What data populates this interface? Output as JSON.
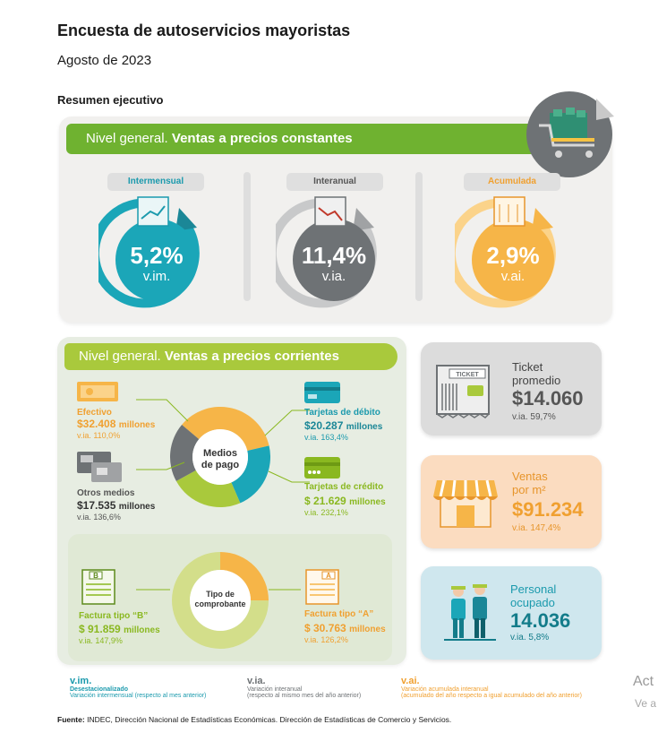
{
  "header": {
    "title": "Encuesta de autoservicios mayoristas",
    "date": "Agosto de 2023",
    "section": "Resumen ejecutivo"
  },
  "constantes": {
    "banner_prefix": "Nivel general.",
    "banner_main": "Ventas a precios constantes",
    "indicators": [
      {
        "label": "Intermensual",
        "value": "5,2%",
        "unit": "v.im.",
        "color": "#1ba6b8"
      },
      {
        "label": "Interanual",
        "value": "11,4%",
        "unit": "v.ia.",
        "color": "#6e7275"
      },
      {
        "label": "Acumulada",
        "value": "2,9%",
        "unit": "v.ai.",
        "color": "#f6b548"
      }
    ]
  },
  "corrientes": {
    "banner_prefix": "Nivel general.",
    "banner_main": "Ventas a precios corrientes",
    "medios_center": [
      "Medios",
      "de pago"
    ],
    "comprobante_center": [
      "Tipo de",
      "comprobante"
    ],
    "items": {
      "efectivo": {
        "label": "Efectivo",
        "amount": "$32.408",
        "unit": "millones",
        "var": "v.ia. 110,0%"
      },
      "otros": {
        "label": "Otros medios",
        "amount": "$17.535",
        "unit": "millones",
        "var": "v.ia. 136,6%"
      },
      "debito": {
        "label": "Tarjetas de débito",
        "amount": "$20.287",
        "unit": "millones",
        "var": "v.ia. 163,4%"
      },
      "credito": {
        "label": "Tarjetas de crédito",
        "amount": "$ 21.629",
        "unit": "millones",
        "var": "v.ia. 232,1%"
      },
      "factura_b": {
        "label": "Factura tipo “B”",
        "amount": "$ 91.859",
        "unit": "millones",
        "var": "v.ia. 147,9%"
      },
      "factura_a": {
        "label": "Factura tipo “A”",
        "amount": "$ 30.763",
        "unit": "millones",
        "var": "v.ia. 126,2%"
      }
    },
    "ticket_word": "TICKET",
    "letter_b": "B",
    "letter_a": "A"
  },
  "cards": {
    "ticket": {
      "label1": "Ticket",
      "label2": "promedio",
      "value": "$14.060",
      "var": "v.ia. 59,7%"
    },
    "ventas_m2": {
      "label1": "Ventas",
      "label2": "por m²",
      "value": "$91.234",
      "var": "v.ia. 147,4%"
    },
    "personal": {
      "label1": "Personal",
      "label2": "ocupado",
      "value": "14.036",
      "var": "v.ia. 5,8%"
    }
  },
  "glossary": [
    {
      "abbr": "v.im.",
      "line1": "Desestacionalizado",
      "line2": "Variación intermensual (respecto al mes anterior)",
      "color": "#1b9aad"
    },
    {
      "abbr": "v.ia.",
      "line1": "Variación interanual",
      "line2": "(respecto al mismo mes del año anterior)",
      "color": "#6e7275"
    },
    {
      "abbr": "v.ai.",
      "line1": "Variación acumulada interanual",
      "line2": "(acumulado del año respecto a igual acumulado del año anterior)",
      "color": "#f0a030"
    }
  ],
  "source": {
    "label": "Fuente:",
    "text": "INDEC, Dirección Nacional de Estadísticas Económicas. Dirección de Estadísticas de Comercio y Servicios."
  },
  "watermark": {
    "line1": "Act",
    "line2": "Ve a"
  },
  "chart_data": [
    {
      "type": "pie",
      "title": "Medios de pago",
      "categories": [
        "Efectivo",
        "Tarjetas de débito",
        "Tarjetas de crédito",
        "Otros medios"
      ],
      "values": [
        32408,
        20287,
        21629,
        17535
      ],
      "colors": [
        "#f6b548",
        "#1ba6b8",
        "#a9c93c",
        "#6e7275"
      ]
    },
    {
      "type": "pie",
      "title": "Tipo de comprobante",
      "categories": [
        "Factura tipo “A”",
        "Factura tipo “B”"
      ],
      "values": [
        30763,
        91859
      ],
      "colors": [
        "#f6b548",
        "#d3de8a"
      ]
    }
  ]
}
